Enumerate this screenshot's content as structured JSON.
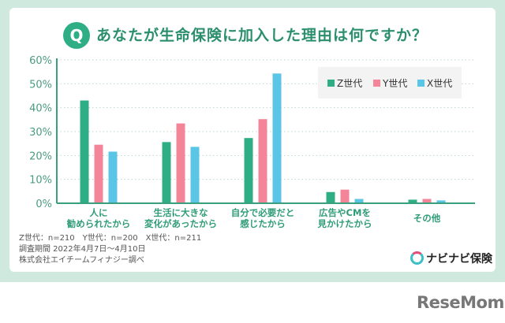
{
  "header": {
    "q_badge": "Q",
    "title": "あなたが生命保険に加入した理由は何ですか？"
  },
  "chart_data": {
    "type": "bar",
    "title": "あなたが生命保険に加入した理由は何ですか？",
    "categories": [
      "人に\n勧められたから",
      "生活に大きな\n変化があったから",
      "自分で必要だと\n感じたから",
      "広告やCMを\n見かけたから",
      "その他"
    ],
    "series": [
      {
        "name": "Z世代",
        "color": "#2fae85",
        "values": [
          43.0,
          25.6,
          27.3,
          4.7,
          1.5
        ]
      },
      {
        "name": "Y世代",
        "color": "#f48497",
        "values": [
          24.5,
          33.4,
          35.2,
          5.7,
          1.8
        ]
      },
      {
        "name": "X世代",
        "color": "#5bc5e6",
        "values": [
          21.6,
          23.6,
          54.3,
          1.8,
          1.2
        ]
      }
    ],
    "ylim": [
      0,
      60
    ],
    "yticks": [
      "0%",
      "10%",
      "20%",
      "30%",
      "40%",
      "50%",
      "60%"
    ],
    "grid": true,
    "legend": "top-right"
  },
  "notes": [
    "Z世代：n=210　Y世代：n=200　X世代：n=211",
    "調査期間 2022年4月7日～4月10日",
    "株式会社エイチームフィナジー調べ"
  ],
  "brand": "ナビナビ保険",
  "watermark": "ReseMom"
}
